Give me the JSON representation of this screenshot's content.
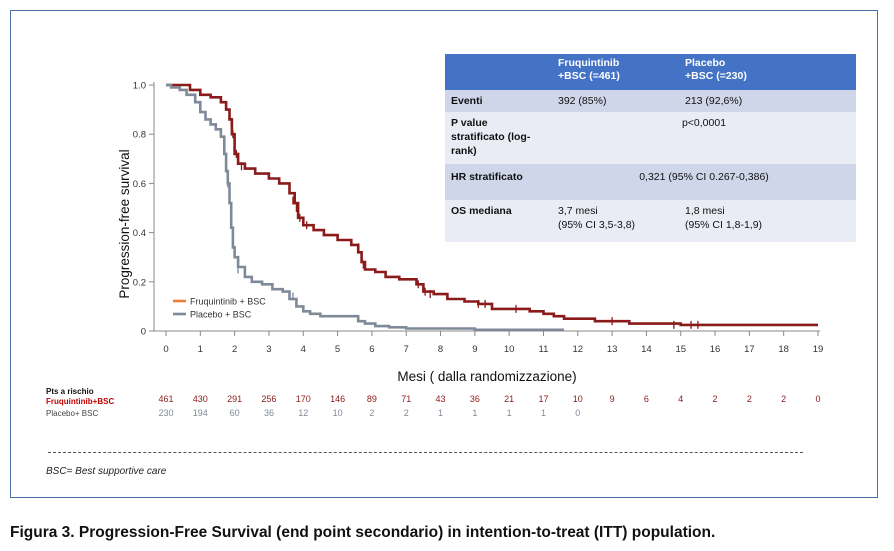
{
  "chart_data": {
    "type": "line",
    "title": "",
    "xlabel": "Mesi ( dalla randomizzazione)",
    "ylabel": "Progression-free survival",
    "xlim": [
      0,
      19
    ],
    "ylim": [
      0,
      1.0
    ],
    "x_ticks": [
      "0",
      "1",
      "2",
      "3",
      "4",
      "5",
      "6",
      "7",
      "8",
      "9",
      "10",
      "11",
      "12",
      "13",
      "14",
      "15",
      "16",
      "17",
      "18",
      "19"
    ],
    "y_ticks": [
      "0",
      "0.2",
      "0.4",
      "0.6",
      "0.8",
      "1.0"
    ],
    "grid": false,
    "legend_position": "bottom-left",
    "series": [
      {
        "name": "Fruquintinib + BSC",
        "color": "#8b1a1a",
        "legend_color": "#ed7d31",
        "points": [
          [
            0,
            1.0
          ],
          [
            0.4,
            1.0
          ],
          [
            0.7,
            0.98
          ],
          [
            1.0,
            0.96
          ],
          [
            1.3,
            0.95
          ],
          [
            1.6,
            0.93
          ],
          [
            1.75,
            0.9
          ],
          [
            1.85,
            0.86
          ],
          [
            1.92,
            0.8
          ],
          [
            2.0,
            0.72
          ],
          [
            2.1,
            0.68
          ],
          [
            2.3,
            0.66
          ],
          [
            2.6,
            0.64
          ],
          [
            3.0,
            0.62
          ],
          [
            3.3,
            0.6
          ],
          [
            3.6,
            0.56
          ],
          [
            3.75,
            0.52
          ],
          [
            3.85,
            0.46
          ],
          [
            4.0,
            0.43
          ],
          [
            4.3,
            0.41
          ],
          [
            4.6,
            0.39
          ],
          [
            5.0,
            0.37
          ],
          [
            5.4,
            0.35
          ],
          [
            5.6,
            0.32
          ],
          [
            5.7,
            0.28
          ],
          [
            5.8,
            0.25
          ],
          [
            6.1,
            0.24
          ],
          [
            6.4,
            0.22
          ],
          [
            6.8,
            0.21
          ],
          [
            7.3,
            0.19
          ],
          [
            7.5,
            0.16
          ],
          [
            7.8,
            0.15
          ],
          [
            8.2,
            0.13
          ],
          [
            8.7,
            0.12
          ],
          [
            9.1,
            0.11
          ],
          [
            9.5,
            0.09
          ],
          [
            10.0,
            0.09
          ],
          [
            10.6,
            0.08
          ],
          [
            11.0,
            0.07
          ],
          [
            11.3,
            0.06
          ],
          [
            11.6,
            0.05
          ],
          [
            12.0,
            0.05
          ],
          [
            12.5,
            0.04
          ],
          [
            13.0,
            0.04
          ],
          [
            13.5,
            0.03
          ],
          [
            14.0,
            0.03
          ],
          [
            15.0,
            0.025
          ],
          [
            16.0,
            0.025
          ],
          [
            17.0,
            0.025
          ],
          [
            18.0,
            0.025
          ],
          [
            19.0,
            0.025
          ]
        ],
        "censors": [
          [
            1.9,
            0.85
          ],
          [
            1.95,
            0.8
          ],
          [
            2.05,
            0.72
          ],
          [
            2.2,
            0.67
          ],
          [
            3.7,
            0.53
          ],
          [
            3.8,
            0.5
          ],
          [
            3.9,
            0.46
          ],
          [
            4.1,
            0.43
          ],
          [
            5.6,
            0.34
          ],
          [
            5.75,
            0.27
          ],
          [
            7.35,
            0.19
          ],
          [
            7.55,
            0.16
          ],
          [
            7.7,
            0.15
          ],
          [
            9.1,
            0.11
          ],
          [
            9.3,
            0.11
          ],
          [
            10.2,
            0.09
          ],
          [
            13.0,
            0.04
          ],
          [
            14.8,
            0.025
          ],
          [
            15.3,
            0.025
          ],
          [
            15.5,
            0.025
          ]
        ]
      },
      {
        "name": "Placebo + BSC",
        "color": "#7f8a99",
        "legend_color": "#7f8a99",
        "points": [
          [
            0,
            1.0
          ],
          [
            0.15,
            0.99
          ],
          [
            0.4,
            0.98
          ],
          [
            0.6,
            0.96
          ],
          [
            0.85,
            0.93
          ],
          [
            1.0,
            0.89
          ],
          [
            1.15,
            0.86
          ],
          [
            1.3,
            0.84
          ],
          [
            1.45,
            0.82
          ],
          [
            1.6,
            0.79
          ],
          [
            1.7,
            0.72
          ],
          [
            1.75,
            0.65
          ],
          [
            1.8,
            0.6
          ],
          [
            1.85,
            0.52
          ],
          [
            1.9,
            0.42
          ],
          [
            1.95,
            0.34
          ],
          [
            2.0,
            0.3
          ],
          [
            2.1,
            0.26
          ],
          [
            2.3,
            0.22
          ],
          [
            2.5,
            0.2
          ],
          [
            2.8,
            0.19
          ],
          [
            3.1,
            0.17
          ],
          [
            3.4,
            0.16
          ],
          [
            3.6,
            0.13
          ],
          [
            3.8,
            0.1
          ],
          [
            4.0,
            0.08
          ],
          [
            4.2,
            0.07
          ],
          [
            4.5,
            0.06
          ],
          [
            5.0,
            0.06
          ],
          [
            5.5,
            0.06
          ],
          [
            5.6,
            0.04
          ],
          [
            5.8,
            0.03
          ],
          [
            6.1,
            0.02
          ],
          [
            6.5,
            0.015
          ],
          [
            7.0,
            0.01
          ],
          [
            8.0,
            0.01
          ],
          [
            9.0,
            0.005
          ],
          [
            10.0,
            0.005
          ],
          [
            11.0,
            0.005
          ],
          [
            11.6,
            0.005
          ]
        ],
        "censors": [
          [
            1.8,
            0.6
          ],
          [
            2.0,
            0.33
          ],
          [
            2.1,
            0.25
          ],
          [
            3.7,
            0.14
          ]
        ]
      }
    ],
    "risk_table": {
      "title": "Pts a rischio",
      "rows": [
        {
          "label": "Fruquintinib+BSC",
          "color": "#c00000",
          "values": [
            "461",
            "430",
            "291",
            "256",
            "170",
            "146",
            "89",
            "71",
            "43",
            "36",
            "21",
            "17",
            "10",
            "9",
            "6",
            "4",
            "2",
            "2",
            "2",
            "0"
          ]
        },
        {
          "label": "Placebo+ BSC",
          "color": "#444444",
          "values": [
            "230",
            "194",
            "60",
            "36",
            "12",
            "10",
            "2",
            "2",
            "1",
            "1",
            "1",
            "1",
            "0"
          ]
        }
      ]
    }
  },
  "table": {
    "headers": [
      "",
      "Fruquintinib\n+BSC (=461)",
      "Placebo\n+BSC (=230)"
    ],
    "rows": [
      {
        "label": "Eventi",
        "col1": "392 (85%)",
        "col2": "213 (92,6%)"
      },
      {
        "label": "P value\nstratificato (log-\nrank)",
        "value": "p<0,0001"
      },
      {
        "label": "HR stratificato",
        "value": "0,321 (95% CI 0.267-0,386)"
      },
      {
        "label": "OS mediana",
        "col1": "3,7 mesi\n(95% CI 3,5-3,8)",
        "col2": "1,8 mesi\n(95% CI 1,8-1,9)"
      }
    ]
  },
  "footnote": "BSC= Best supportive care",
  "caption": "Figura 3. Progression-Free Survival (end point secondario) in intention-to-treat (ITT) population."
}
